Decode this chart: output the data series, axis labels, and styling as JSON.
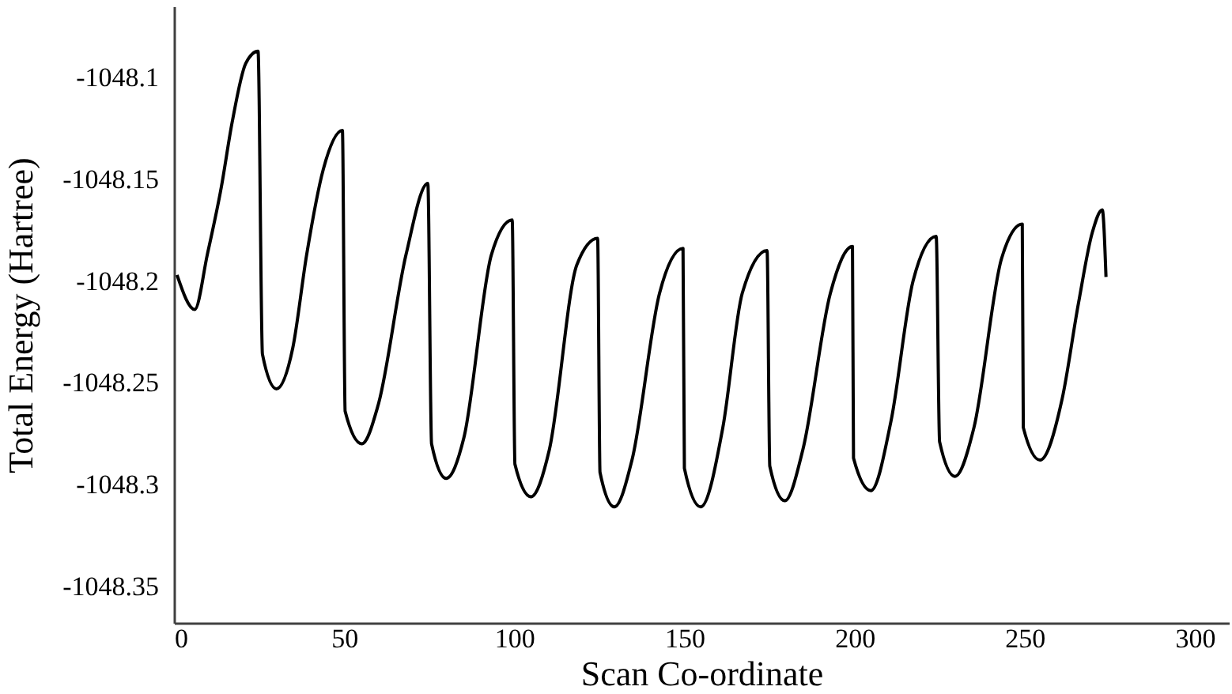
{
  "chart_data": {
    "type": "line",
    "xlabel": "Scan Co-ordinate",
    "ylabel": "Total Energy    (Hartree)",
    "xlim": [
      0,
      310
    ],
    "xticks": [
      0,
      50,
      100,
      150,
      200,
      250,
      300
    ],
    "ylim": [
      -1048.368,
      -1048.065
    ],
    "yticks": [
      -1048.1,
      -1048.15,
      -1048.2,
      -1048.25,
      -1048.3,
      -1048.35
    ],
    "grid": false,
    "marker": "none",
    "line_style": "solid",
    "series": [
      {
        "color": "#000000",
        "x": [
          0.9,
          6.1,
          9.8,
          13.9,
          17.1,
          21.1,
          24.7,
          26.0,
          30.1,
          34.9,
          39.0,
          43.9,
          49.5,
          50.3,
          55.2,
          60.0,
          68.2,
          74.6,
          75.7,
          80.0,
          85.2,
          93.3,
          99.4,
          100.2,
          104.9,
          110.3,
          118.4,
          124.5,
          125.2,
          129.4,
          134.6,
          142.7,
          149.6,
          150.0,
          154.8,
          161.3,
          167.0,
          174.3,
          175.1,
          179.5,
          184.8,
          192.9,
          199.4,
          199.7,
          204.8,
          210.7,
          217.2,
          224.0,
          225.0,
          229.5,
          235.1,
          243.2,
          249.3,
          249.6,
          254.5,
          261.0,
          265.8,
          269.9,
          272.8,
          273.9
        ],
        "values": [
          -1048.197,
          -1048.214,
          -1048.187,
          -1048.154,
          -1048.122,
          -1048.093,
          -1048.087,
          -1048.236,
          -1048.253,
          -1048.233,
          -1048.187,
          -1048.145,
          -1048.126,
          -1048.264,
          -1048.28,
          -1048.261,
          -1048.187,
          -1048.152,
          -1048.28,
          -1048.297,
          -1048.277,
          -1048.187,
          -1048.17,
          -1048.29,
          -1048.306,
          -1048.283,
          -1048.192,
          -1048.179,
          -1048.294,
          -1048.311,
          -1048.288,
          -1048.206,
          -1048.184,
          -1048.292,
          -1048.311,
          -1048.272,
          -1048.206,
          -1048.185,
          -1048.291,
          -1048.308,
          -1048.283,
          -1048.206,
          -1048.183,
          -1048.287,
          -1048.303,
          -1048.269,
          -1048.2,
          -1048.178,
          -1048.279,
          -1048.296,
          -1048.272,
          -1048.189,
          -1048.172,
          -1048.272,
          -1048.288,
          -1048.258,
          -1048.211,
          -1048.176,
          -1048.165,
          -1048.198
        ]
      }
    ]
  }
}
